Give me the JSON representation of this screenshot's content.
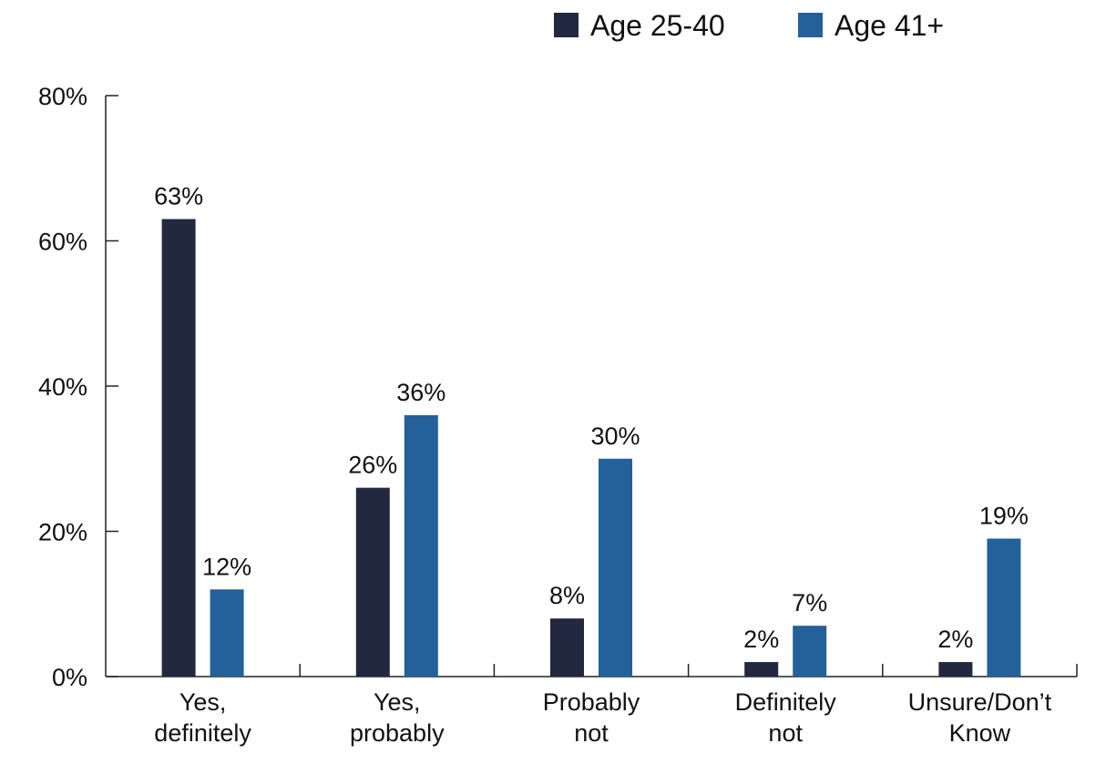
{
  "chart_data": {
    "type": "bar",
    "categories": [
      [
        "Yes,",
        "definitely"
      ],
      [
        "Yes,",
        "probably"
      ],
      [
        "Probably",
        "not"
      ],
      [
        "Definitely",
        "not"
      ],
      [
        "Unsure/Don’t",
        "Know"
      ]
    ],
    "series": [
      {
        "name": "Age 25-40",
        "color": "#222840",
        "values": [
          63,
          26,
          8,
          2,
          2
        ]
      },
      {
        "name": "Age 41+",
        "color": "#246099",
        "values": [
          12,
          36,
          30,
          7,
          19
        ]
      }
    ],
    "ylim": [
      0,
      80
    ],
    "yticks": [
      0,
      20,
      40,
      60,
      80
    ],
    "value_format": "percent",
    "legend_position": "top-right",
    "grid": false
  }
}
